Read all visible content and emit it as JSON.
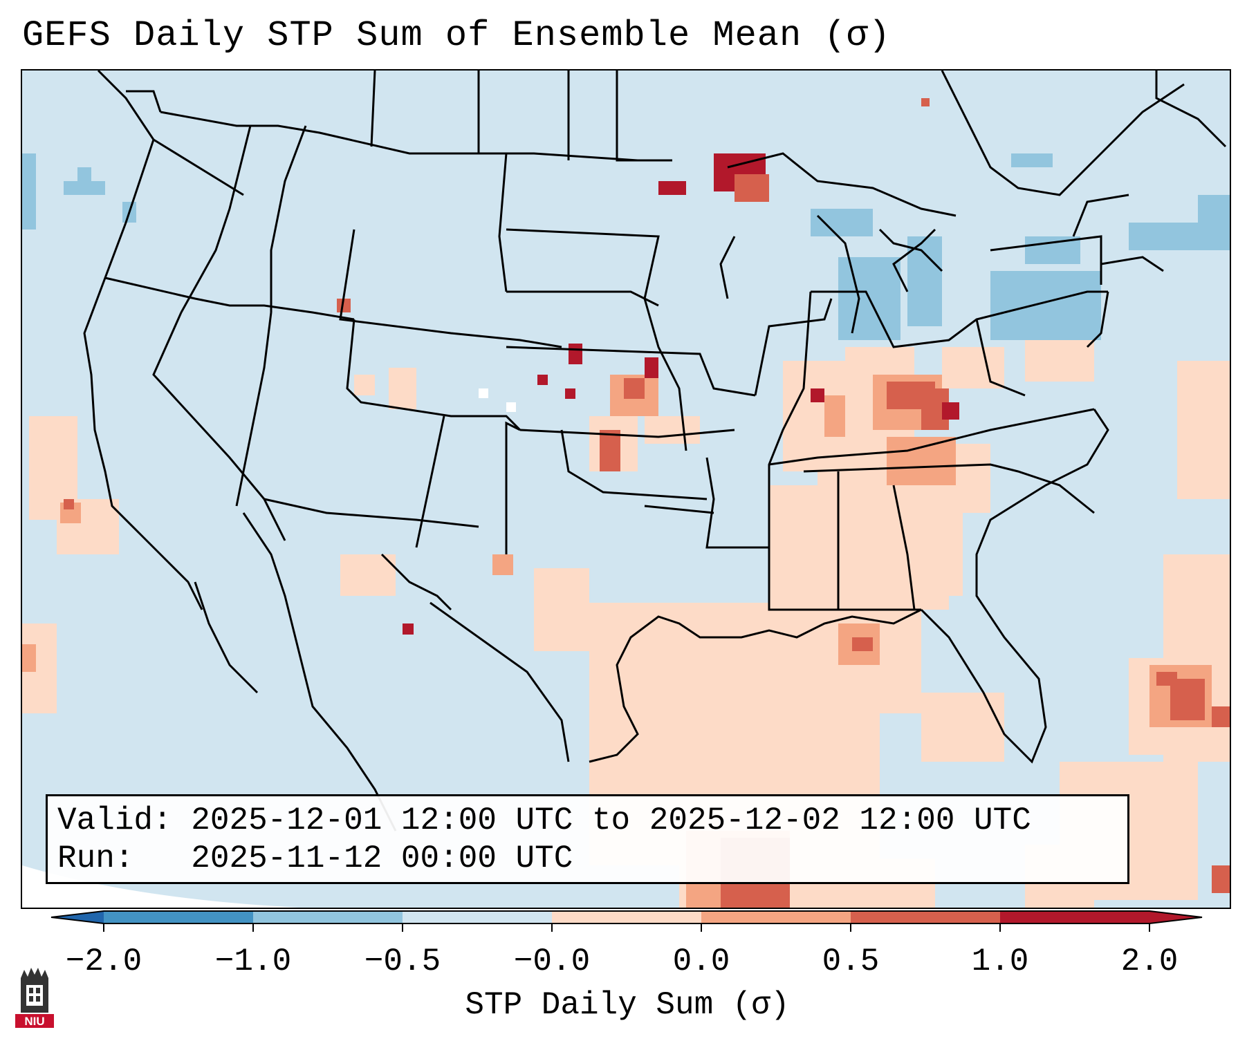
{
  "title": "GEFS Daily STP Sum of Ensemble Mean (σ)",
  "info_box": {
    "valid_label": "Valid:",
    "valid_value": "2025-12-01 12:00 UTC to 2025-12-02 12:00 UTC",
    "run_label": "Run:",
    "run_value": "2025-11-12 00:00 UTC"
  },
  "colorbar": {
    "label": "STP Daily Sum (σ)",
    "ticks": [
      "−2.0",
      "−1.0",
      "−0.5",
      "−0.0",
      "0.0",
      "0.5",
      "1.0",
      "2.0"
    ],
    "colors": [
      "#2166ac",
      "#4393c3",
      "#92c5de",
      "#d1e5f0",
      "#fddbc7",
      "#f4a582",
      "#d6604d",
      "#b2182b"
    ],
    "ocean_color": "#d1e5f0"
  },
  "logo": {
    "text": "NIU"
  },
  "map_features": [
    "northern-plains-high-anomaly",
    "ohio-valley-high-anomaly",
    "great-lakes-low-anomaly",
    "gulf-of-mexico-positive-anomaly"
  ]
}
